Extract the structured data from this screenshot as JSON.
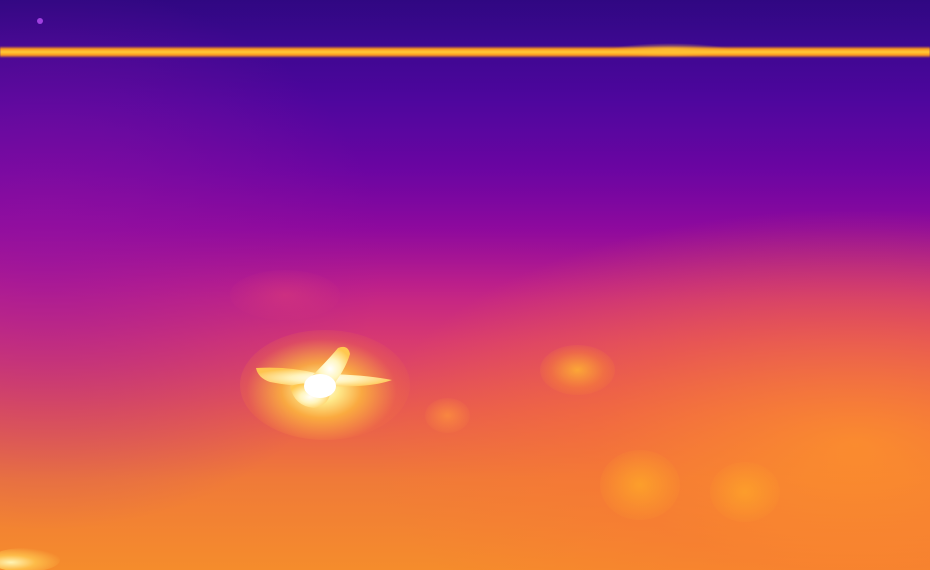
{
  "image": {
    "palette": "ironbow",
    "colors": {
      "cold": "#3a0a8f",
      "mid": "#c0208a",
      "warm": "#f07a38",
      "hot": "#ffcc3a",
      "hottest": "#fffde0"
    }
  }
}
